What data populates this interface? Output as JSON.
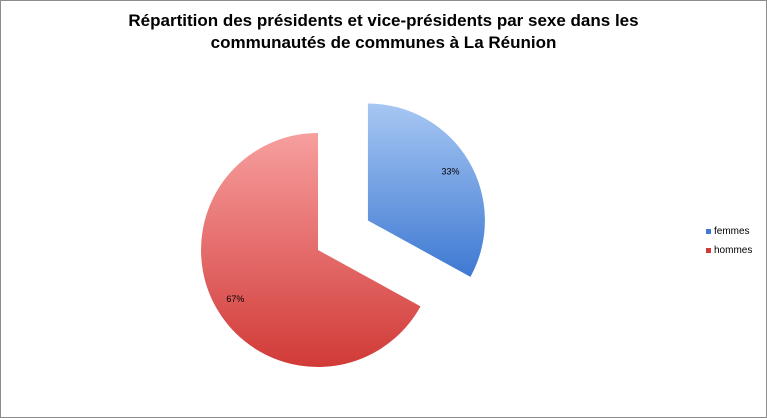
{
  "chart_data": {
    "type": "pie",
    "title_lines": [
      "Répartition des présidents et vice-présidents par sexe dans les",
      "communautés de communes à La Réunion"
    ],
    "slices": [
      {
        "label": "femmes",
        "value": 33,
        "display": "33%",
        "color_light": "#a7c7f3",
        "color_dark": "#3e79d2"
      },
      {
        "label": "hommes",
        "value": 67,
        "display": "67%",
        "color_light": "#f79f9f",
        "color_dark": "#d13a37"
      }
    ],
    "legend_position": "right",
    "exploded": "femmes"
  }
}
